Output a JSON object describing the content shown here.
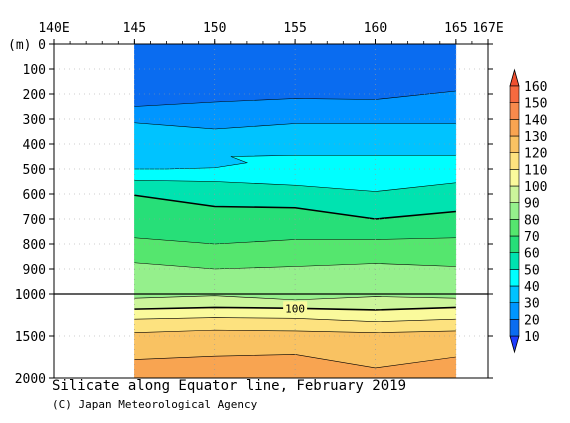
{
  "chart_data": {
    "type": "heatmap",
    "title": "Silicate along Equator line, February 2019",
    "credit": "(C) Japan Meteorological Agency",
    "x_axis": {
      "range": [
        140,
        167
      ],
      "ticks": [
        {
          "value": 140,
          "label": "140E"
        },
        {
          "value": 145,
          "label": "145"
        },
        {
          "value": 150,
          "label": "150"
        },
        {
          "value": 155,
          "label": "155"
        },
        {
          "value": 160,
          "label": "160"
        },
        {
          "value": 165,
          "label": "165"
        },
        {
          "value": 167,
          "label": "167E"
        }
      ]
    },
    "y_axis": {
      "label": "(m)",
      "upper_range": [
        0,
        1000
      ],
      "lower_range": [
        1000,
        2000
      ],
      "ticks": [
        {
          "value": 0,
          "label": "0"
        },
        {
          "value": 100,
          "label": "100"
        },
        {
          "value": 200,
          "label": "200"
        },
        {
          "value": 300,
          "label": "300"
        },
        {
          "value": 400,
          "label": "400"
        },
        {
          "value": 500,
          "label": "500"
        },
        {
          "value": 600,
          "label": "600"
        },
        {
          "value": 700,
          "label": "700"
        },
        {
          "value": 800,
          "label": "800"
        },
        {
          "value": 900,
          "label": "900"
        },
        {
          "value": 1000,
          "label": "1000"
        },
        {
          "value": 1500,
          "label": "1500"
        },
        {
          "value": 2000,
          "label": "2000"
        }
      ]
    },
    "data_extent": {
      "lon": [
        145,
        165
      ],
      "depth": [
        0,
        2000
      ]
    },
    "colorbar": {
      "levels": [
        10,
        20,
        30,
        40,
        50,
        60,
        70,
        80,
        90,
        100,
        110,
        120,
        130,
        140,
        150,
        160
      ],
      "colors": [
        "#1e3cff",
        "#0a6cf0",
        "#0096ff",
        "#00c3ff",
        "#00ffff",
        "#00e3b0",
        "#27df78",
        "#55e66e",
        "#95f08c",
        "#ccf59b",
        "#fafa9c",
        "#fde27f",
        "#f9c262",
        "#f8a451",
        "#f88a4c",
        "#f76a3f",
        "#f0502f"
      ]
    },
    "contour_lines": [
      {
        "value": 20,
        "lon": [
          145,
          150,
          155,
          160,
          165
        ],
        "depth": [
          250,
          232,
          218,
          222,
          188
        ]
      },
      {
        "value": 30,
        "lon": [
          145,
          150,
          155,
          160,
          165
        ],
        "depth": [
          315,
          340,
          318,
          318,
          318
        ]
      },
      {
        "value": 40,
        "lon": [
          145,
          147,
          150,
          152,
          151,
          155,
          160,
          165
        ],
        "depth": [
          500,
          500,
          495,
          475,
          450,
          445,
          445,
          445
        ]
      },
      {
        "value": 50,
        "lon": [
          145,
          150,
          155,
          160,
          165
        ],
        "depth": [
          545,
          550,
          565,
          590,
          555
        ]
      },
      {
        "value": 60,
        "lon": [
          145,
          150,
          155,
          160,
          165
        ],
        "depth": [
          605,
          650,
          655,
          700,
          670
        ]
      },
      {
        "value": 70,
        "lon": [
          145,
          150,
          155,
          160,
          165
        ],
        "depth": [
          775,
          800,
          782,
          782,
          775
        ]
      },
      {
        "value": 80,
        "lon": [
          145,
          150,
          155,
          160,
          165
        ],
        "depth": [
          875,
          900,
          890,
          878,
          890
        ]
      },
      {
        "value": 90,
        "lon": [
          145,
          150,
          155,
          160,
          165
        ],
        "depth": [
          1050,
          1020,
          1070,
          1030,
          1050
        ]
      },
      {
        "value": 100,
        "lon": [
          145,
          150,
          155,
          160,
          165
        ],
        "depth": [
          1180,
          1160,
          1170,
          1190,
          1160
        ],
        "label": "100"
      },
      {
        "value": 110,
        "lon": [
          145,
          150,
          155,
          160,
          165
        ],
        "depth": [
          1300,
          1280,
          1290,
          1330,
          1300
        ]
      },
      {
        "value": 120,
        "lon": [
          145,
          150,
          155,
          160,
          165
        ],
        "depth": [
          1460,
          1430,
          1440,
          1460,
          1440
        ]
      },
      {
        "value": 130,
        "lon": [
          145,
          150,
          155,
          160,
          165
        ],
        "depth": [
          1780,
          1740,
          1720,
          1880,
          1750
        ]
      }
    ],
    "contour_label": "100",
    "grid": true
  }
}
